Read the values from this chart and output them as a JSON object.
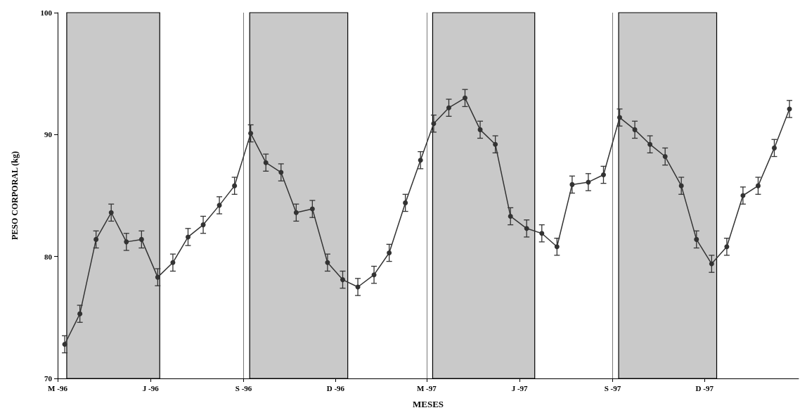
{
  "chart_data": {
    "type": "line",
    "xlabel": "MESES",
    "ylabel": "PESO CORPORAL (kg)",
    "x": [
      "1996-03-08",
      "1996-03-23",
      "1996-04-08",
      "1996-04-23",
      "1996-05-08",
      "1996-05-23",
      "1996-06-08",
      "1996-06-23",
      "1996-07-08",
      "1996-07-23",
      "1996-08-08",
      "1996-08-23",
      "1996-09-08",
      "1996-09-23",
      "1996-10-08",
      "1996-10-23",
      "1996-11-08",
      "1996-11-23",
      "1996-12-08",
      "1996-12-23",
      "1997-01-08",
      "1997-01-23",
      "1997-02-08",
      "1997-02-23",
      "1997-03-08",
      "1997-03-23",
      "1997-04-08",
      "1997-04-23",
      "1997-05-08",
      "1997-05-23",
      "1997-06-08",
      "1997-06-23",
      "1997-07-08",
      "1997-07-23",
      "1997-08-08",
      "1997-08-23",
      "1997-09-08",
      "1997-09-23",
      "1997-10-08",
      "1997-10-23",
      "1997-11-08",
      "1997-11-23",
      "1997-12-08",
      "1997-12-23",
      "1998-01-08",
      "1998-01-23",
      "1998-02-08",
      "1998-02-23"
    ],
    "series": [
      {
        "color": "#333333",
        "values": [
          72.8,
          75.3,
          81.4,
          83.6,
          81.2,
          81.4,
          78.3,
          79.5,
          81.6,
          82.6,
          84.2,
          85.8,
          90.1,
          87.7,
          86.9,
          83.6,
          83.9,
          79.5,
          78.1,
          77.5,
          78.5,
          80.3,
          84.4,
          87.9,
          90.9,
          92.2,
          93.0,
          90.4,
          89.2,
          83.3,
          82.3,
          81.9,
          80.8,
          85.9,
          86.1,
          86.7,
          91.4,
          90.4,
          89.2,
          88.2,
          85.8,
          81.4,
          79.4,
          80.8,
          85.0,
          85.8,
          88.9,
          92.1
        ],
        "errors": [
          0.7,
          0.7,
          0.7,
          0.7,
          0.7,
          0.7,
          0.7,
          0.7,
          0.7,
          0.7,
          0.7,
          0.7,
          0.7,
          0.7,
          0.7,
          0.7,
          0.7,
          0.7,
          0.7,
          0.7,
          0.7,
          0.7,
          0.7,
          0.7,
          0.7,
          0.7,
          0.7,
          0.7,
          0.7,
          0.7,
          0.7,
          0.7,
          0.7,
          0.7,
          0.7,
          0.7,
          0.7,
          0.7,
          0.7,
          0.7,
          0.7,
          0.7,
          0.7,
          0.7,
          0.7,
          0.7,
          0.7,
          0.7
        ]
      }
    ],
    "xlim": [
      "1996-03-01",
      "1998-03-04"
    ],
    "xticks": [
      {
        "value": "1996-03",
        "label": "M -96"
      },
      {
        "value": "1996-06",
        "label": "J -96"
      },
      {
        "value": "1996-09",
        "label": "S -96"
      },
      {
        "value": "1996-12",
        "label": "D -96"
      },
      {
        "value": "1997-03",
        "label": "M -97"
      },
      {
        "value": "1997-06",
        "label": "J -97"
      },
      {
        "value": "1997-09",
        "label": "S -97"
      },
      {
        "value": "1997-12",
        "label": "D -97"
      }
    ],
    "ylim": [
      70,
      100
    ],
    "yticks": [
      70,
      80,
      90,
      100
    ],
    "bands": [
      {
        "axis": "x",
        "from": "1996-03-10",
        "to": "1996-06-10",
        "color": "#c9c9c9"
      },
      {
        "axis": "x",
        "from": "1996-09-07",
        "to": "1996-12-13",
        "color": "#c9c9c9"
      },
      {
        "axis": "x",
        "from": "1997-03-07",
        "to": "1997-06-16",
        "color": "#c9c9c9"
      },
      {
        "axis": "x",
        "from": "1997-09-07",
        "to": "1997-12-13",
        "color": "#c9c9c9"
      }
    ],
    "grid": "x",
    "marker": "circle",
    "line_style": "solid"
  }
}
